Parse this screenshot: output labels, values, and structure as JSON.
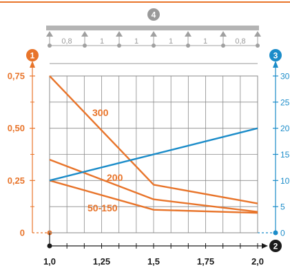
{
  "colors": {
    "orange": "#e8742a",
    "blue": "#1b8cc9",
    "grid": "#8a8a8a",
    "beam": "#b4b4b4",
    "support": "#a0a0a0",
    "dark": "#1a1a1a"
  },
  "badges": {
    "left": "1",
    "right": "3",
    "bottom": "2",
    "top": "4"
  },
  "beam": {
    "spans": [
      "0,8",
      "1",
      "1",
      "1",
      "1",
      "0,8"
    ]
  },
  "chart_data": {
    "type": "line",
    "x_ticks": [
      "1,0",
      "1,25",
      "1,5",
      "1,75",
      "2,0"
    ],
    "xlim": [
      1.0,
      2.0
    ],
    "left_axis": {
      "ylim": [
        0,
        0.75
      ],
      "ticks": [
        "0",
        "0,25",
        "0,50",
        "0,75"
      ],
      "tick_values": [
        0,
        0.25,
        0.5,
        0.75
      ]
    },
    "right_axis": {
      "ylim": [
        0,
        30
      ],
      "ticks": [
        "0",
        "5",
        "10",
        "15",
        "20",
        "25",
        "30"
      ],
      "tick_values": [
        0,
        5,
        10,
        15,
        20,
        25,
        30
      ]
    },
    "series": [
      {
        "name": "300",
        "axis": "left",
        "color": "#e8742a",
        "points": [
          [
            1.0,
            0.75
          ],
          [
            1.5,
            0.23
          ],
          [
            2.0,
            0.14
          ]
        ]
      },
      {
        "name": "200",
        "axis": "left",
        "color": "#e8742a",
        "points": [
          [
            1.0,
            0.35
          ],
          [
            1.5,
            0.16
          ],
          [
            2.0,
            0.1
          ]
        ]
      },
      {
        "name": "50-150",
        "axis": "left",
        "color": "#e8742a",
        "points": [
          [
            1.0,
            0.25
          ],
          [
            1.5,
            0.11
          ],
          [
            2.0,
            0.095
          ]
        ]
      },
      {
        "name": "",
        "axis": "right",
        "color": "#1b8cc9",
        "points": [
          [
            1.0,
            10
          ],
          [
            2.0,
            20
          ]
        ]
      }
    ],
    "grid": true
  }
}
